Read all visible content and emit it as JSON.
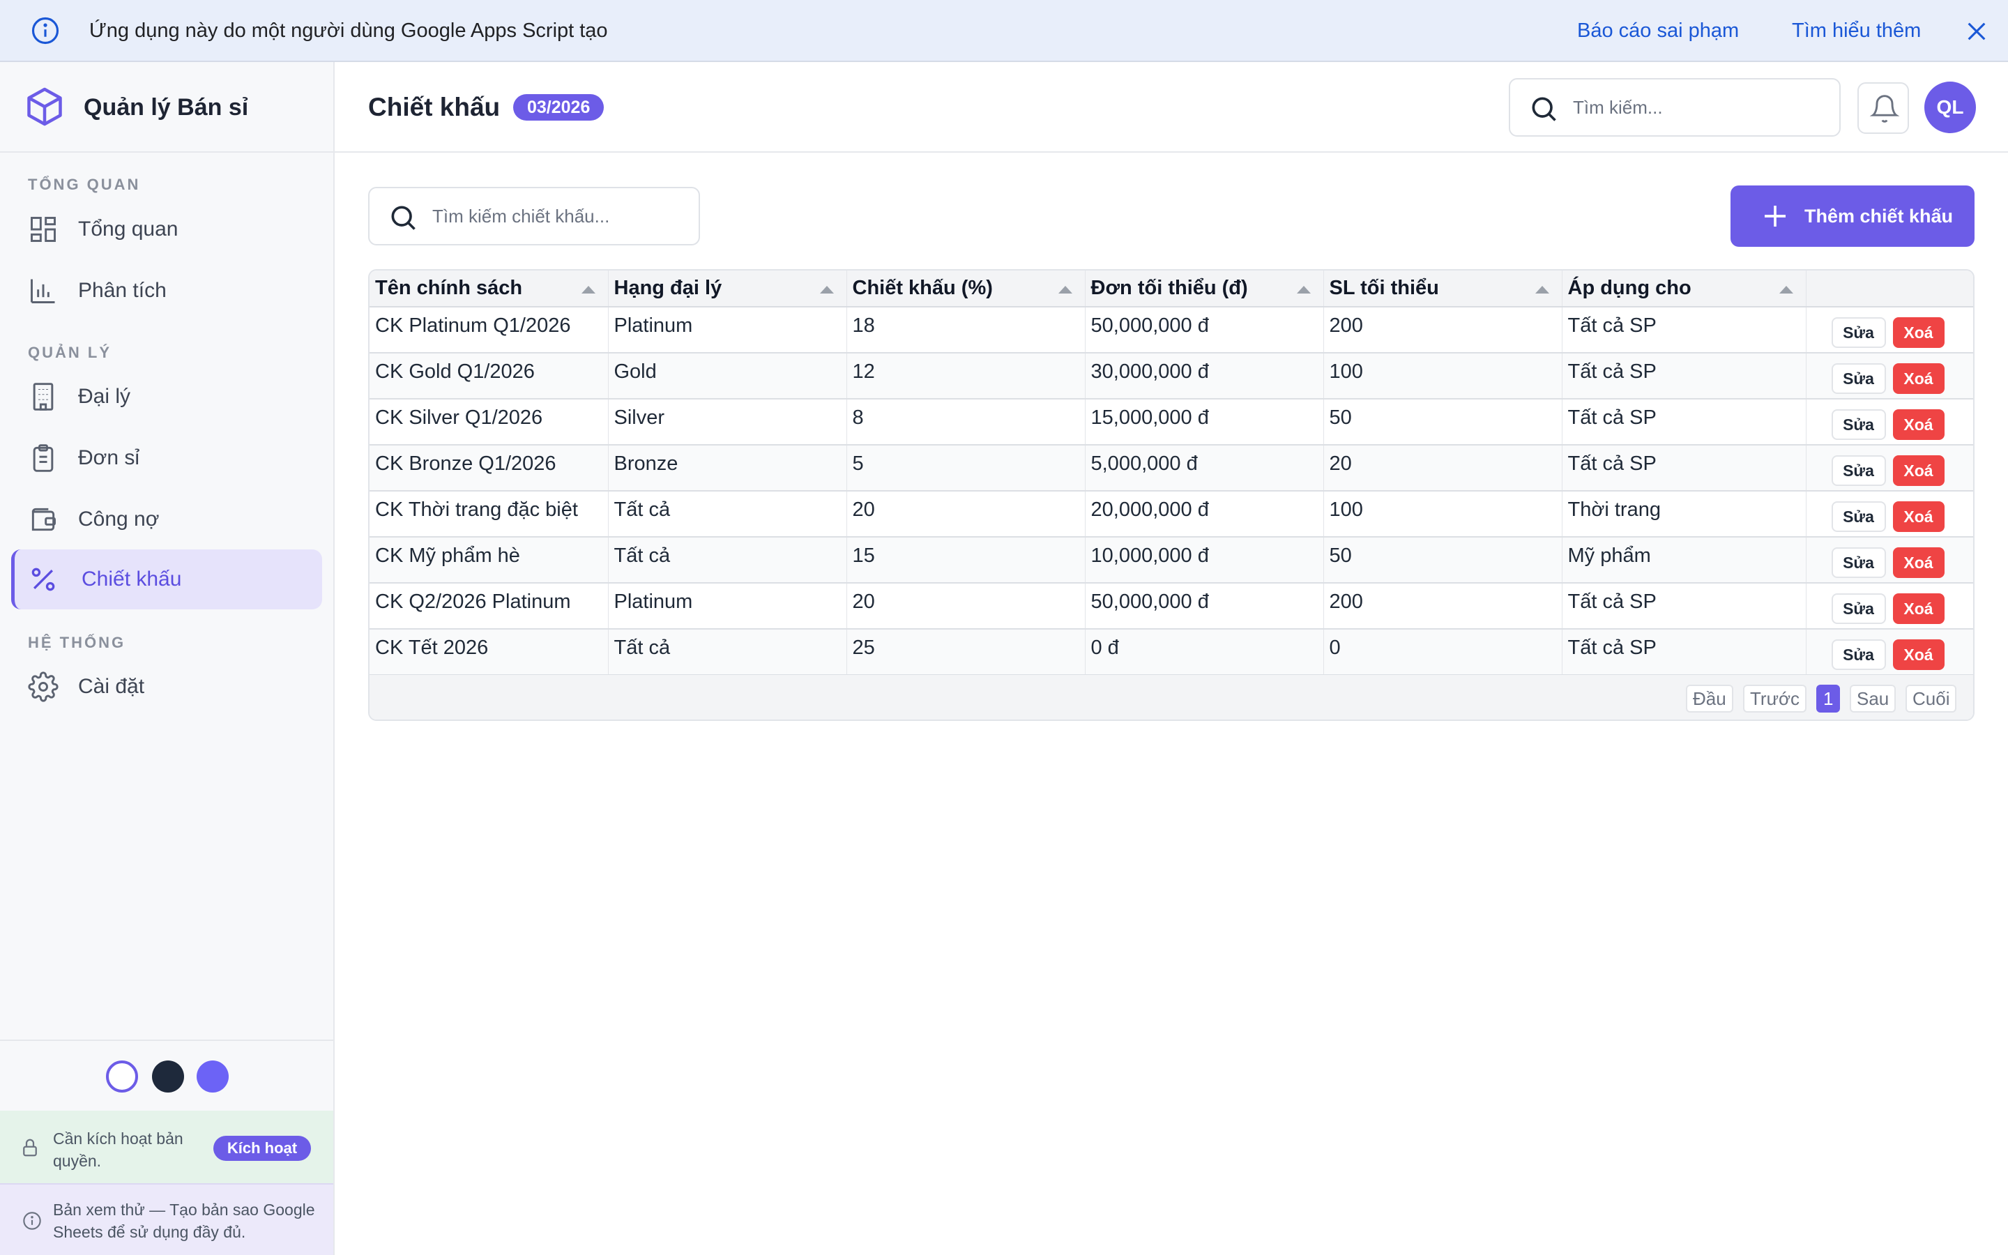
{
  "banner": {
    "message": "Ứng dụng này do một người dùng Google Apps Script tạo",
    "report_link": "Báo cáo sai phạm",
    "learn_link": "Tìm hiểu thêm"
  },
  "sidebar": {
    "brand": "Quản lý Bán sỉ",
    "sections": {
      "overview": "TỔNG QUAN",
      "manage": "QUẢN LÝ",
      "system": "HỆ THỐNG"
    },
    "items": [
      {
        "label": "Tổng quan",
        "icon": "grid-icon"
      },
      {
        "label": "Phân tích",
        "icon": "bar-chart-icon"
      },
      {
        "label": "Đại lý",
        "icon": "building-icon"
      },
      {
        "label": "Đơn sỉ",
        "icon": "clipboard-icon"
      },
      {
        "label": "Công nợ",
        "icon": "wallet-icon"
      },
      {
        "label": "Chiết khấu",
        "icon": "percent-icon",
        "active": true
      },
      {
        "label": "Cài đặt",
        "icon": "gear-icon"
      }
    ],
    "themes": [
      "#ffffff",
      "#1e293b",
      "#6c63f6"
    ],
    "license": {
      "text": "Cần kích hoạt bản quyền.",
      "button": "Kích hoạt"
    },
    "trial": "Bản xem thử — Tạo bản sao Google Sheets để sử dụng đầy đủ."
  },
  "header": {
    "title": "Chiết khấu",
    "period_badge": "03/2026",
    "search_placeholder": "Tìm kiếm...",
    "avatar": "QL"
  },
  "main": {
    "search_placeholder": "Tìm kiếm chiết khấu...",
    "add_button": "Thêm chiết khấu",
    "columns": [
      "Tên chính sách",
      "Hạng đại lý",
      "Chiết khấu (%)",
      "Đơn tối thiểu (đ)",
      "SL tối thiểu",
      "Áp dụng cho"
    ],
    "edit_label": "Sửa",
    "delete_label": "Xoá",
    "rows": [
      [
        "CK Platinum Q1/2026",
        "Platinum",
        "18",
        "50,000,000 đ",
        "200",
        "Tất cả SP"
      ],
      [
        "CK Gold Q1/2026",
        "Gold",
        "12",
        "30,000,000 đ",
        "100",
        "Tất cả SP"
      ],
      [
        "CK Silver Q1/2026",
        "Silver",
        "8",
        "15,000,000 đ",
        "50",
        "Tất cả SP"
      ],
      [
        "CK Bronze Q1/2026",
        "Bronze",
        "5",
        "5,000,000 đ",
        "20",
        "Tất cả SP"
      ],
      [
        "CK Thời trang đặc biệt",
        "Tất cả",
        "20",
        "20,000,000 đ",
        "100",
        "Thời trang"
      ],
      [
        "CK Mỹ phẩm hè",
        "Tất cả",
        "15",
        "10,000,000 đ",
        "50",
        "Mỹ phẩm"
      ],
      [
        "CK Q2/2026 Platinum",
        "Platinum",
        "20",
        "50,000,000 đ",
        "200",
        "Tất cả SP"
      ],
      [
        "CK Tết 2026",
        "Tất cả",
        "25",
        "0 đ",
        "0",
        "Tất cả SP"
      ]
    ],
    "pager": {
      "first": "Đầu",
      "prev": "Trước",
      "current": "1",
      "next": "Sau",
      "last": "Cuối"
    }
  },
  "colors": {
    "accent": "#6c5ce7",
    "danger": "#ef4444",
    "banner_bg": "#e8eefa",
    "link": "#1a57d6"
  }
}
